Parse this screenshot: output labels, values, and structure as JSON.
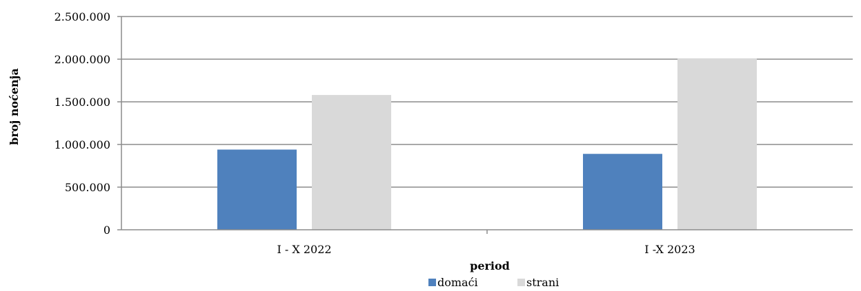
{
  "chart_data": {
    "type": "bar",
    "title": "",
    "xlabel": "period",
    "ylabel": "broj noćenja",
    "categories": [
      "I - X 2022",
      "I -X 2023"
    ],
    "series": [
      {
        "name": "domaći",
        "color": "#4f81bd",
        "values": [
          940000,
          890000
        ]
      },
      {
        "name": "strani",
        "color": "#d9d9d9",
        "values": [
          1580000,
          2010000
        ]
      }
    ],
    "ylim": [
      0,
      2500000
    ],
    "yticks": [
      0,
      500000,
      1000000,
      1500000,
      2000000,
      2500000
    ],
    "ytick_labels": [
      "0",
      "500.000",
      "1.000.000",
      "1.500.000",
      "2.000.000",
      "2.500.000"
    ],
    "grid": true,
    "legend_position": "bottom"
  }
}
